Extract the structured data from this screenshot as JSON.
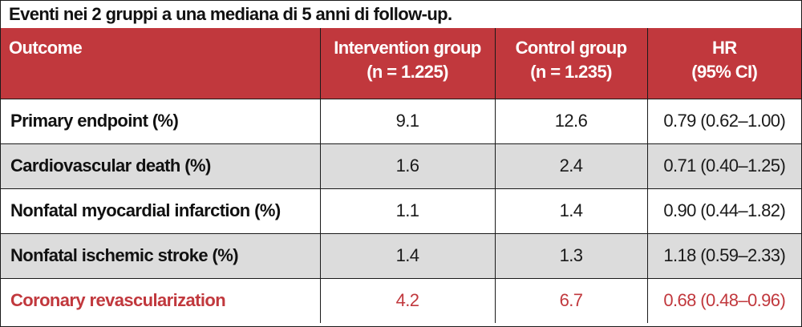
{
  "caption": "Eventi nei 2 gruppi a una mediana di 5 anni di follow-up.",
  "header": {
    "outcome": "Outcome",
    "intervention_l1": "Intervention group",
    "intervention_l2": "(n = 1.225)",
    "control_l1": "Control group",
    "control_l2": "(n = 1.235)",
    "hr_l1": "HR",
    "hr_l2": "(95% CI)"
  },
  "rows": [
    {
      "outcome": "Primary endpoint (%)",
      "intervention": "9.1",
      "control": "12.6",
      "hr": "0.79 (0.62–1.00)"
    },
    {
      "outcome": "Cardiovascular death (%)",
      "intervention": "1.6",
      "control": "2.4",
      "hr": "0.71 (0.40–1.25)"
    },
    {
      "outcome": "Nonfatal myocardial infarction (%)",
      "intervention": "1.1",
      "control": "1.4",
      "hr": "0.90 (0.44–1.82)"
    },
    {
      "outcome": "Nonfatal ischemic stroke (%)",
      "intervention": "1.4",
      "control": "1.3",
      "hr": "1.18 (0.59–2.33)"
    },
    {
      "outcome": "Coronary revascularization",
      "intervention": "4.2",
      "control": "6.7",
      "hr": "0.68 (0.48–0.96)"
    }
  ],
  "colors": {
    "header_bg": "#c1383d",
    "header_text": "#ffffff",
    "shaded_row": "#dcdcdc",
    "highlight_text": "#c1383d"
  }
}
